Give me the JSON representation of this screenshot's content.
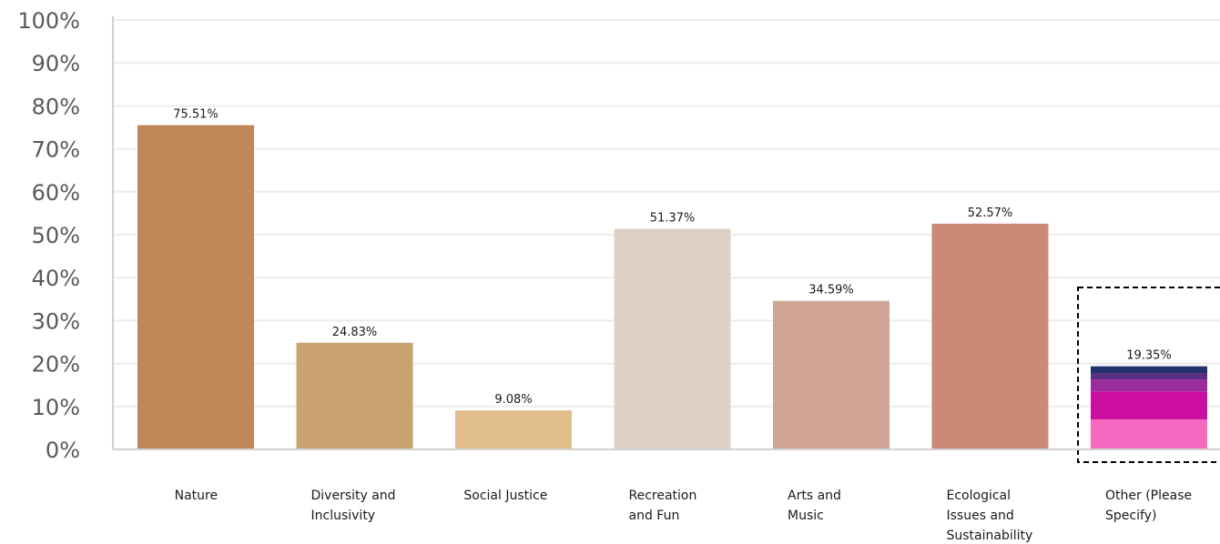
{
  "chart_data": {
    "type": "bar",
    "categories": [
      [
        "Nature"
      ],
      [
        "Diversity and",
        "Inclusivity"
      ],
      [
        "Social Justice"
      ],
      [
        "Recreation",
        "and Fun"
      ],
      [
        "Arts and",
        "Music"
      ],
      [
        "Ecological",
        "Issues and",
        "Sustainability"
      ],
      [
        "Other (Please",
        "Specify)"
      ]
    ],
    "values": [
      75.51,
      24.83,
      9.08,
      51.37,
      34.59,
      52.57,
      19.35
    ],
    "value_labels": [
      "75.51%",
      "24.83%",
      "9.08%",
      "51.37%",
      "34.59%",
      "52.57%",
      "19.35%"
    ],
    "ylim": [
      0,
      100
    ],
    "yticks": [
      0,
      10,
      20,
      30,
      40,
      50,
      60,
      70,
      80,
      90,
      100
    ],
    "ytick_labels": [
      "0%",
      "10%",
      "20%",
      "30%",
      "40%",
      "50%",
      "60%",
      "70%",
      "80%",
      "90%",
      "100%"
    ],
    "grid": true,
    "bar_colors": [
      "#c08758",
      "#c8a271",
      "#e2bd8c",
      "#dfd0c8",
      "#d0a595",
      "#c98a76",
      null
    ],
    "highlighted_category_index": 6,
    "highlight_style": "dashed-box",
    "stacked_segments_last_bar": [
      {
        "value": 7.0,
        "color": "#f768c0"
      },
      {
        "value": 6.5,
        "color": "#cc0ea0"
      },
      {
        "value": 2.8,
        "color": "#9b2c9c"
      },
      {
        "value": 1.5,
        "color": "#5a2f82"
      },
      {
        "value": 1.55,
        "color": "#23316d"
      }
    ],
    "colors": {
      "grid": "#ececec",
      "axis": "#d0d0d0",
      "highlight_box": "#000000"
    }
  }
}
